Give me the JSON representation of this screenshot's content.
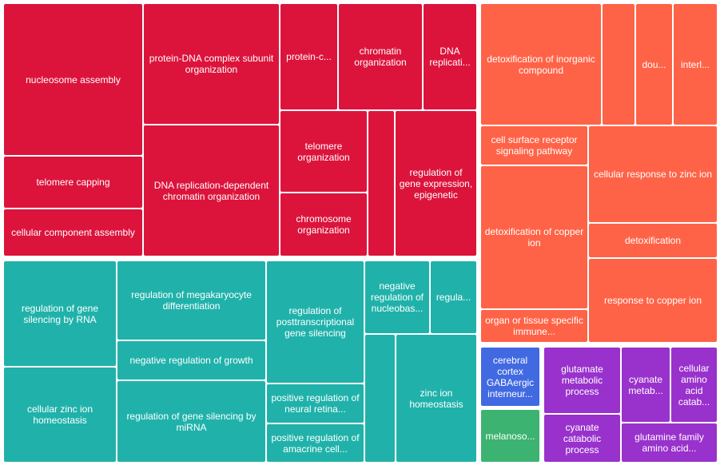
{
  "chart_data": {
    "type": "treemap",
    "colors": {
      "chromatin": "#dc143c",
      "detox": "#ff6347",
      "silencing": "#20b2aa",
      "gaba": "#4169e1",
      "melanosome": "#3cb371",
      "amino": "#9932cc"
    },
    "tiles": [
      {
        "label": "nucleosome assembly",
        "group": "chromatin"
      },
      {
        "label": "telomere capping",
        "group": "chromatin"
      },
      {
        "label": "cellular component assembly",
        "group": "chromatin"
      },
      {
        "label": "protein-DNA complex subunit organization",
        "group": "chromatin"
      },
      {
        "label": "DNA replication-dependent chromatin organization",
        "group": "chromatin"
      },
      {
        "label": "protein-c...",
        "group": "chromatin"
      },
      {
        "label": "chromatin organization",
        "group": "chromatin"
      },
      {
        "label": "DNA replicati...",
        "group": "chromatin"
      },
      {
        "label": "telomere organization",
        "group": "chromatin"
      },
      {
        "label": "chromosome organization",
        "group": "chromatin"
      },
      {
        "label": "",
        "group": "chromatin"
      },
      {
        "label": "regulation of gene expression, epigenetic",
        "group": "chromatin"
      },
      {
        "label": "detoxification of inorganic compound",
        "group": "detox"
      },
      {
        "label": "",
        "group": "detox"
      },
      {
        "label": "dou...",
        "group": "detox"
      },
      {
        "label": "interl...",
        "group": "detox"
      },
      {
        "label": "cell surface receptor signaling pathway",
        "group": "detox"
      },
      {
        "label": "cellular response to zinc ion",
        "group": "detox"
      },
      {
        "label": "detoxification of copper ion",
        "group": "detox"
      },
      {
        "label": "detoxification",
        "group": "detox"
      },
      {
        "label": "response to copper ion",
        "group": "detox"
      },
      {
        "label": "organ or tissue specific immune...",
        "group": "detox"
      },
      {
        "label": "regulation of gene silencing by RNA",
        "group": "silencing"
      },
      {
        "label": "cellular zinc ion homeostasis",
        "group": "silencing"
      },
      {
        "label": "regulation of megakaryocyte differentiation",
        "group": "silencing"
      },
      {
        "label": "negative regulation of growth",
        "group": "silencing"
      },
      {
        "label": "regulation of gene silencing by miRNA",
        "group": "silencing"
      },
      {
        "label": "regulation of posttranscriptional gene silencing",
        "group": "silencing"
      },
      {
        "label": "positive regulation of neural retina...",
        "group": "silencing"
      },
      {
        "label": "positive regulation of amacrine cell...",
        "group": "silencing"
      },
      {
        "label": "negative regulation of nucleobas...",
        "group": "silencing"
      },
      {
        "label": "regula...",
        "group": "silencing"
      },
      {
        "label": "",
        "group": "silencing"
      },
      {
        "label": "zinc ion homeostasis",
        "group": "silencing"
      },
      {
        "label": "cerebral cortex GABAergic interneur...",
        "group": "gaba"
      },
      {
        "label": "melanoso...",
        "group": "melanosome"
      },
      {
        "label": "glutamate metabolic process",
        "group": "amino"
      },
      {
        "label": "cyanate metab...",
        "group": "amino"
      },
      {
        "label": "cellular amino acid catab...",
        "group": "amino"
      },
      {
        "label": "cyanate catabolic process",
        "group": "amino"
      },
      {
        "label": "glutamine family amino acid...",
        "group": "amino"
      }
    ]
  }
}
